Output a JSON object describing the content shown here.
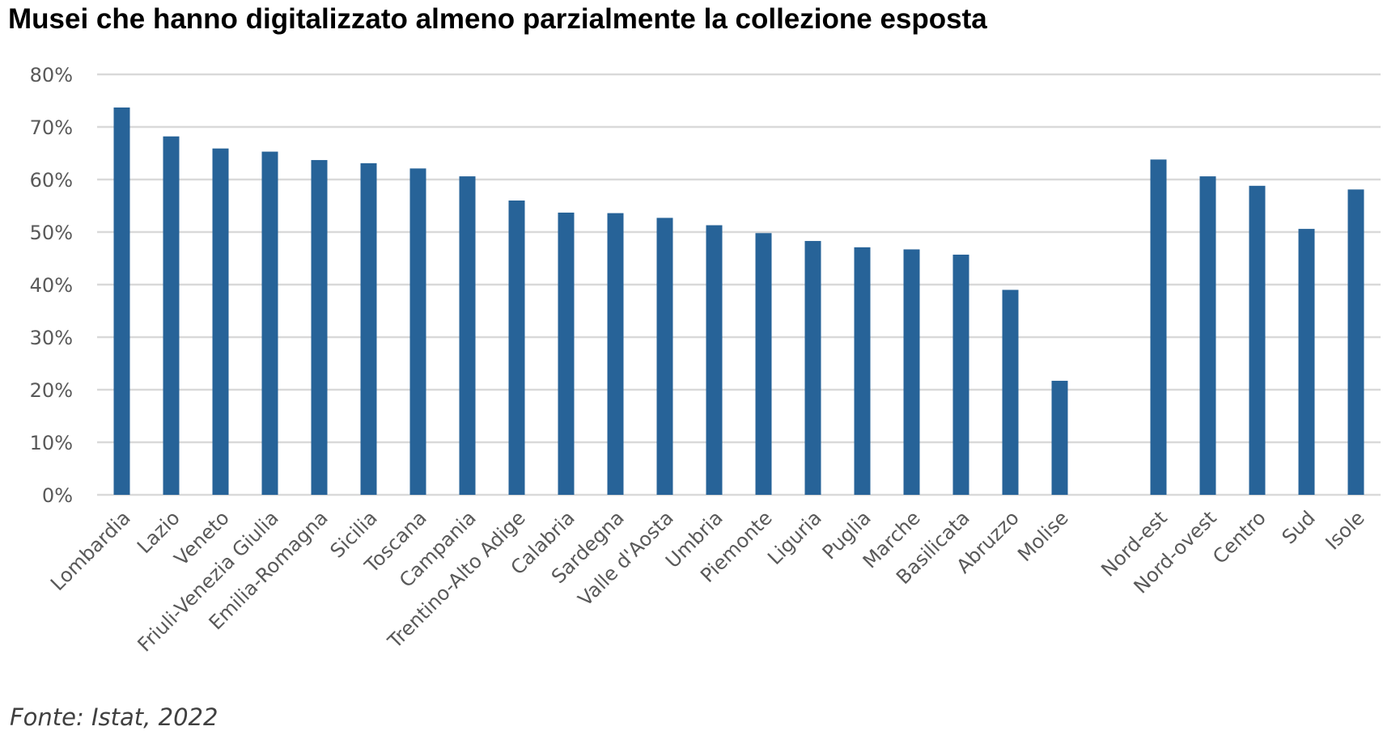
{
  "chart_data": {
    "type": "bar",
    "title": "Musei che hanno digitalizzato almeno parzialmente la collezione esposta",
    "source": "Fonte: Istat, 2022",
    "xlabel": "",
    "ylabel": "",
    "ylim": [
      0,
      80
    ],
    "yticks": [
      "0%",
      "10%",
      "20%",
      "30%",
      "40%",
      "50%",
      "60%",
      "70%",
      "80%"
    ],
    "grid": true,
    "bar_color": "#276398",
    "categories": [
      "Lombardia",
      "Lazio",
      "Veneto",
      "Friuli-Venezia Giulia",
      "Emilia-Romagna",
      "Sicilia",
      "Toscana",
      "Campania",
      "Trentino-Alto Adige",
      "Calabria",
      "Sardegna",
      "Valle d'Aosta",
      "Umbria",
      "Piemonte",
      "Liguria",
      "Puglia",
      "Marche",
      "Basilicata",
      "Abruzzo",
      "Molise",
      "",
      "Nord-est",
      "Nord-ovest",
      "Centro",
      "Sud",
      "Isole"
    ],
    "values": [
      73.7,
      68.2,
      65.9,
      65.3,
      63.7,
      63.1,
      62.1,
      60.6,
      56.0,
      53.7,
      53.6,
      52.7,
      51.3,
      49.8,
      48.3,
      47.1,
      46.7,
      45.7,
      39.0,
      21.7,
      null,
      63.8,
      60.6,
      58.8,
      50.6,
      58.1
    ]
  }
}
